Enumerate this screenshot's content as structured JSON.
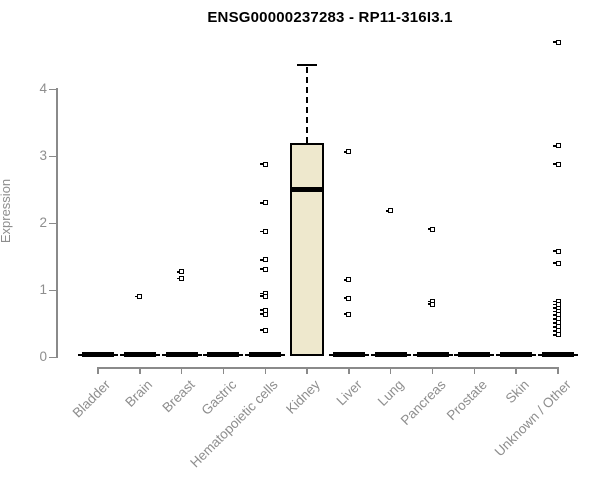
{
  "chart_data": {
    "type": "boxplot",
    "title": "ENSG00000237283 - RP11-316I3.1",
    "ylabel": "Expression",
    "ylim": [
      0,
      4.7
    ],
    "yticks": [
      "0",
      "1",
      "2",
      "3",
      "4"
    ],
    "grid": false,
    "legend": false,
    "box_fill_color": "#EEE8CD",
    "box_border_color": "#000000",
    "axis_color": "#8a8a8a",
    "categories": [
      "Bladder",
      "Brain",
      "Breast",
      "Gastric",
      "Hematopoietic cells",
      "Kidney",
      "Liver",
      "Lung",
      "Pancreas",
      "Prostate",
      "Skin",
      "Unknown / Other"
    ],
    "boxes": [
      {
        "category": "Bladder",
        "q1": 0,
        "median": 0,
        "q3": 0,
        "whisker_low": 0,
        "whisker_high": 0,
        "outliers": []
      },
      {
        "category": "Brain",
        "q1": 0,
        "median": 0,
        "q3": 0,
        "whisker_low": 0,
        "whisker_high": 0,
        "outliers": [
          0.9
        ]
      },
      {
        "category": "Breast",
        "q1": 0,
        "median": 0,
        "q3": 0,
        "whisker_low": 0,
        "whisker_high": 0,
        "outliers": [
          1.27,
          1.17
        ]
      },
      {
        "category": "Gastric",
        "q1": 0,
        "median": 0,
        "q3": 0,
        "whisker_low": 0,
        "whisker_high": 0,
        "outliers": []
      },
      {
        "category": "Hematopoietic cells",
        "q1": 0,
        "median": 0,
        "q3": 0,
        "whisker_low": 0,
        "whisker_high": 0,
        "outliers": [
          2.88,
          2.3,
          1.87,
          1.45,
          1.31,
          0.95,
          0.91,
          0.7,
          0.64,
          0.4
        ]
      },
      {
        "category": "Kidney",
        "q1": 0.02,
        "median": 2.5,
        "q3": 3.19,
        "whisker_low": 0.02,
        "whisker_high": 4.36,
        "outliers": []
      },
      {
        "category": "Liver",
        "q1": 0,
        "median": 0,
        "q3": 0,
        "whisker_low": 0,
        "whisker_high": 0,
        "outliers": [
          3.06,
          1.15,
          0.88,
          0.64
        ]
      },
      {
        "category": "Lung",
        "q1": 0,
        "median": 0,
        "q3": 0,
        "whisker_low": 0,
        "whisker_high": 0,
        "outliers": [
          2.18
        ]
      },
      {
        "category": "Pancreas",
        "q1": 0,
        "median": 0,
        "q3": 0,
        "whisker_low": 0,
        "whisker_high": 0,
        "outliers": [
          1.91,
          0.83,
          0.79
        ]
      },
      {
        "category": "Prostate",
        "q1": 0,
        "median": 0,
        "q3": 0,
        "whisker_low": 0,
        "whisker_high": 0,
        "outliers": []
      },
      {
        "category": "Skin",
        "q1": 0,
        "median": 0,
        "q3": 0,
        "whisker_low": 0,
        "whisker_high": 0,
        "outliers": []
      },
      {
        "category": "Unknown / Other",
        "q1": 0,
        "median": 0,
        "q3": 0,
        "whisker_low": 0,
        "whisker_high": 0,
        "outliers": [
          4.7,
          3.15,
          2.88,
          1.58,
          1.4,
          0.83,
          0.78,
          0.73,
          0.68,
          0.63,
          0.57,
          0.51,
          0.45,
          0.39,
          0.33
        ]
      }
    ]
  }
}
